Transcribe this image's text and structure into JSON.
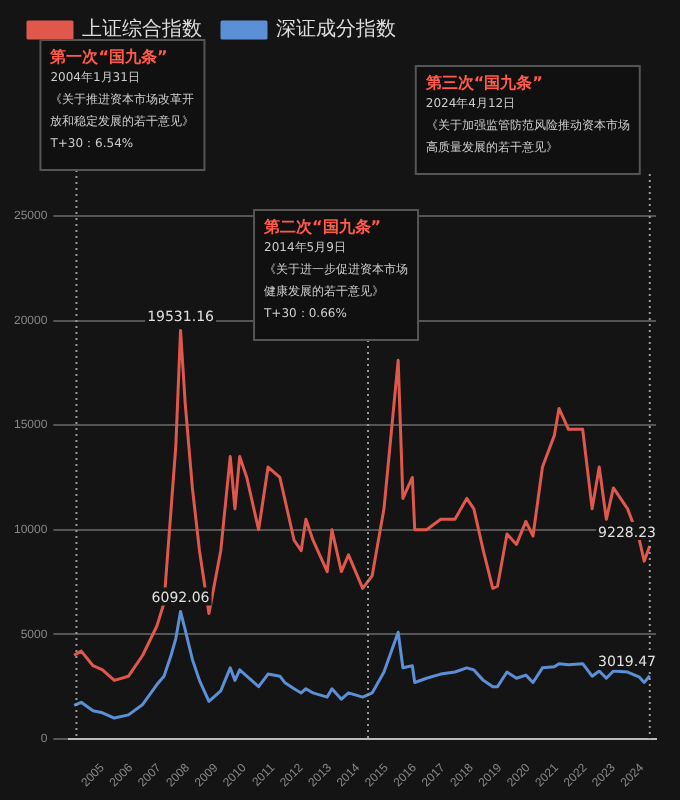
{
  "chart_data": {
    "type": "line",
    "series": [
      {
        "name": "上证综合指数",
        "color": "#e0584c",
        "x": [
          "2004-01",
          "2004-04",
          "2004-09",
          "2005-01",
          "2005-06",
          "2005-12",
          "2006-06",
          "2006-12",
          "2007-03",
          "2007-06",
          "2007-08",
          "2007-10",
          "2007-12",
          "2008-03",
          "2008-06",
          "2008-10",
          "2009-03",
          "2009-07",
          "2009-09",
          "2009-11",
          "2010-02",
          "2010-07",
          "2010-11",
          "2011-04",
          "2011-06",
          "2011-10",
          "2012-01",
          "2012-03",
          "2012-06",
          "2012-12",
          "2013-02",
          "2013-06",
          "2013-09",
          "2014-03",
          "2014-07",
          "2014-12",
          "2015-06",
          "2015-08",
          "2015-12",
          "2016-01",
          "2016-06",
          "2016-12",
          "2017-06",
          "2017-11",
          "2018-02",
          "2018-06",
          "2018-10",
          "2018-12",
          "2019-04",
          "2019-08",
          "2019-12",
          "2020-03",
          "2020-07",
          "2020-12",
          "2021-02",
          "2021-06",
          "2021-12",
          "2022-04",
          "2022-07",
          "2022-10",
          "2023-01",
          "2023-07",
          "2023-12",
          "2024-02",
          "2024-04-12"
        ],
        "values": [
          4000,
          4200,
          3500,
          3300,
          2800,
          3000,
          4000,
          5400,
          6500,
          11000,
          14000,
          19531.16,
          16000,
          12000,
          9000,
          6000,
          9000,
          13500,
          11000,
          13500,
          12500,
          10000,
          13000,
          12500,
          11500,
          9500,
          9000,
          10500,
          9500,
          8000,
          10000,
          8000,
          8800,
          7200,
          7800,
          11000,
          18100,
          11500,
          12500,
          10000,
          10000,
          10500,
          10500,
          11500,
          11000,
          9000,
          7200,
          7300,
          9800,
          9300,
          10400,
          9700,
          13000,
          14500,
          15800,
          14800,
          14800,
          11000,
          13000,
          10500,
          12000,
          11000,
          9500,
          8500,
          9228.23
        ]
      },
      {
        "name": "深证成分指数",
        "color": "#5b8fd6",
        "x": [
          "2004-01",
          "2004-04",
          "2004-09",
          "2005-01",
          "2005-06",
          "2005-12",
          "2006-06",
          "2006-12",
          "2007-03",
          "2007-06",
          "2007-08",
          "2007-10",
          "2007-12",
          "2008-03",
          "2008-06",
          "2008-10",
          "2009-03",
          "2009-07",
          "2009-09",
          "2009-11",
          "2010-02",
          "2010-07",
          "2010-11",
          "2011-04",
          "2011-06",
          "2011-10",
          "2012-01",
          "2012-03",
          "2012-06",
          "2012-12",
          "2013-02",
          "2013-06",
          "2013-09",
          "2014-03",
          "2014-07",
          "2014-12",
          "2015-06",
          "2015-08",
          "2015-12",
          "2016-01",
          "2016-06",
          "2016-12",
          "2017-06",
          "2017-11",
          "2018-02",
          "2018-06",
          "2018-10",
          "2018-12",
          "2019-04",
          "2019-08",
          "2019-12",
          "2020-03",
          "2020-07",
          "2020-12",
          "2021-02",
          "2021-06",
          "2021-12",
          "2022-04",
          "2022-07",
          "2022-10",
          "2023-01",
          "2023-07",
          "2023-12",
          "2024-02",
          "2024-04-12"
        ],
        "values": [
          1600,
          1750,
          1350,
          1250,
          1000,
          1150,
          1650,
          2600,
          3000,
          4000,
          4800,
          6092.06,
          5200,
          3800,
          2800,
          1800,
          2300,
          3400,
          2800,
          3300,
          3000,
          2500,
          3100,
          3000,
          2700,
          2400,
          2200,
          2400,
          2200,
          2000,
          2400,
          1900,
          2200,
          2000,
          2200,
          3200,
          5100,
          3400,
          3500,
          2700,
          2900,
          3100,
          3200,
          3400,
          3300,
          2800,
          2500,
          2500,
          3200,
          2900,
          3050,
          2700,
          3400,
          3450,
          3600,
          3550,
          3600,
          3000,
          3250,
          2900,
          3250,
          3200,
          2950,
          2700,
          3019.47
        ]
      }
    ],
    "xlim": [
      "2003-11",
      "2024-07"
    ],
    "xticks": [
      {
        "value": "2005",
        "label": "2005"
      },
      {
        "value": "2006",
        "label": "2006"
      },
      {
        "value": "2007",
        "label": "2007"
      },
      {
        "value": "2008",
        "label": "2008"
      },
      {
        "value": "2009",
        "label": "2009"
      },
      {
        "value": "2010",
        "label": "2010"
      },
      {
        "value": "2011",
        "label": "2011"
      },
      {
        "value": "2012",
        "label": "2012"
      },
      {
        "value": "2013",
        "label": "2013"
      },
      {
        "value": "2014",
        "label": "2014"
      },
      {
        "value": "2015",
        "label": "2015"
      },
      {
        "value": "2016",
        "label": "2016"
      },
      {
        "value": "2017",
        "label": "2017"
      },
      {
        "value": "2018",
        "label": "2018"
      },
      {
        "value": "2019",
        "label": "2019"
      },
      {
        "value": "2020",
        "label": "2020"
      },
      {
        "value": "2021",
        "label": "2021"
      },
      {
        "value": "2022",
        "label": "2022"
      },
      {
        "value": "2023",
        "label": "2023"
      },
      {
        "value": "2024",
        "label": "2024"
      }
    ],
    "ylim": [
      0,
      25000
    ],
    "yticks": [
      0,
      5000,
      10000,
      15000,
      20000,
      25000
    ],
    "grid": "y",
    "legend": "top",
    "marker": "none",
    "line_style": "solid",
    "ref_lines": [
      {
        "axis": "x",
        "value": "2004-01-31",
        "color": "#9a9a9a",
        "line_style": "dotted"
      },
      {
        "axis": "x",
        "value": "2014-05-09",
        "color": "#9a9a9a",
        "line_style": "dotted"
      },
      {
        "axis": "x",
        "value": "2024-04-12",
        "color": "#9a9a9a",
        "line_style": "dotted"
      }
    ],
    "annotations": [
      "第一次“国九条”",
      "2004年1月31日",
      "《关于推进资本市场改革开放和稳定发展的若干意见》",
      "T+30：6.54%",
      "第二次“国九条”",
      "2014年5月9日",
      "《关于进一步促进资本市场健康发展的若干意见》",
      "T+30：0.66%",
      "第三次“国九条”",
      "2024年4月12日",
      "《关于加强监管防范风险推动资本市场高质量发展的若干意见》",
      {
        "text": "19531.16",
        "x": "2007-10",
        "y": 19531.16
      },
      {
        "text": "6092.06",
        "x": "2007-10",
        "y": 6092.06
      },
      {
        "text": "9228.23",
        "x": "2024-04-12",
        "y": 9228.23
      },
      {
        "text": "3019.47",
        "x": "2024-04-12",
        "y": 3019.47
      }
    ]
  }
}
